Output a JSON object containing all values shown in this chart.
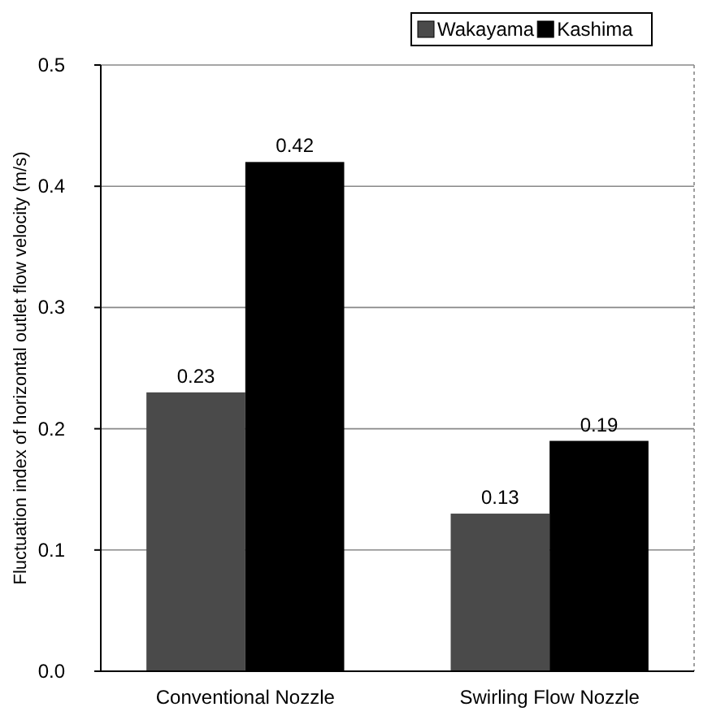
{
  "chart_data": {
    "type": "bar",
    "ylabel": "Fluctuation index of horizontal outlet flow velocity (m/s)",
    "categories": [
      "Conventional Nozzle",
      "Swirling Flow Nozzle"
    ],
    "series": [
      {
        "name": "Wakayama",
        "color": "#4a4a4a",
        "values": [
          0.23,
          0.13
        ]
      },
      {
        "name": "Kashima",
        "color": "#000000",
        "values": [
          0.42,
          0.19
        ]
      }
    ],
    "ylim": [
      0,
      0.5
    ],
    "yticks": [
      {
        "value": 0,
        "label": "0.0"
      },
      0.1,
      0.2,
      0.3,
      0.4,
      0.5
    ],
    "grid": "y",
    "legend": "top",
    "data_labels": true
  }
}
